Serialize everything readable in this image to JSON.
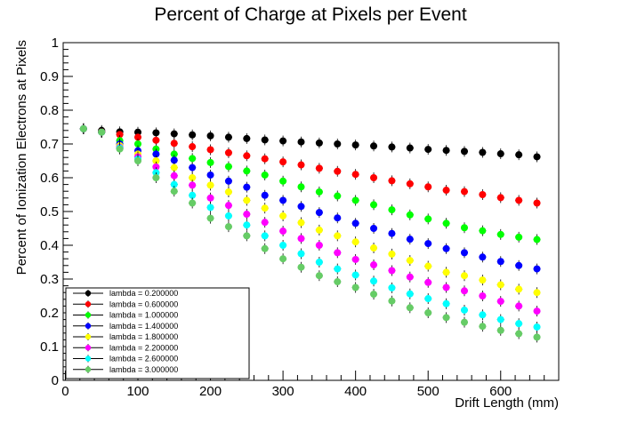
{
  "chart_data": {
    "type": "scatter",
    "title": "Percent of Charge at Pixels per Event",
    "xlabel": "Drift Length (mm)",
    "ylabel": "Percent of Ionization Electrons at Pixels",
    "xlim": [
      -3,
      680
    ],
    "ylim": [
      0,
      1
    ],
    "x_ticks": [
      0,
      100,
      200,
      300,
      400,
      500,
      600
    ],
    "y_ticks": [
      0,
      0.1,
      0.2,
      0.3,
      0.4,
      0.5,
      0.6,
      0.7,
      0.8,
      0.9,
      1
    ],
    "x_tick_labels": [
      "0",
      "100",
      "200",
      "300",
      "400",
      "500",
      "600"
    ],
    "y_tick_labels": [
      "0",
      "0.1",
      "0.2",
      "0.3",
      "0.4",
      "0.5",
      "0.6",
      "0.7",
      "0.8",
      "0.9",
      "1"
    ],
    "grid": false,
    "legend_position": "bottom-left",
    "x": [
      25,
      50,
      75,
      100,
      125,
      150,
      175,
      200,
      225,
      250,
      275,
      300,
      325,
      350,
      375,
      400,
      425,
      450,
      475,
      500,
      525,
      550,
      575,
      600,
      625,
      650
    ],
    "series": [
      {
        "name": "lambda = 0.200000",
        "color": "#000000",
        "values": [
          0.745,
          0.74,
          0.736,
          0.735,
          0.733,
          0.73,
          0.727,
          0.724,
          0.72,
          0.716,
          0.712,
          0.709,
          0.706,
          0.703,
          0.7,
          0.697,
          0.694,
          0.691,
          0.688,
          0.684,
          0.681,
          0.678,
          0.675,
          0.671,
          0.668,
          0.662
        ]
      },
      {
        "name": "lambda = 0.600000",
        "color": "#ff0000",
        "values": [
          0.745,
          0.736,
          0.728,
          0.72,
          0.711,
          0.702,
          0.692,
          0.683,
          0.674,
          0.665,
          0.656,
          0.647,
          0.638,
          0.628,
          0.619,
          0.61,
          0.6,
          0.591,
          0.582,
          0.573,
          0.563,
          0.559,
          0.55,
          0.541,
          0.533,
          0.525
        ]
      },
      {
        "name": "lambda = 1.000000",
        "color": "#00ff00",
        "values": [
          0.745,
          0.735,
          0.71,
          0.7,
          0.685,
          0.67,
          0.657,
          0.645,
          0.633,
          0.62,
          0.608,
          0.59,
          0.573,
          0.558,
          0.546,
          0.533,
          0.52,
          0.505,
          0.49,
          0.478,
          0.465,
          0.452,
          0.443,
          0.432,
          0.424,
          0.417
        ]
      },
      {
        "name": "lambda = 1.400000",
        "color": "#0000ff",
        "values": [
          0.745,
          0.735,
          0.7,
          0.68,
          0.67,
          0.652,
          0.63,
          0.608,
          0.59,
          0.572,
          0.548,
          0.533,
          0.515,
          0.497,
          0.481,
          0.465,
          0.45,
          0.435,
          0.418,
          0.405,
          0.39,
          0.378,
          0.365,
          0.352,
          0.34,
          0.33
        ]
      },
      {
        "name": "lambda = 1.800000",
        "color": "#ffff00",
        "values": [
          0.745,
          0.735,
          0.695,
          0.67,
          0.65,
          0.63,
          0.6,
          0.578,
          0.558,
          0.533,
          0.51,
          0.487,
          0.467,
          0.445,
          0.428,
          0.41,
          0.392,
          0.374,
          0.355,
          0.338,
          0.32,
          0.31,
          0.297,
          0.283,
          0.27,
          0.26
        ]
      },
      {
        "name": "lambda = 2.200000",
        "color": "#ff00ff",
        "values": [
          0.745,
          0.735,
          0.69,
          0.662,
          0.632,
          0.606,
          0.578,
          0.54,
          0.518,
          0.492,
          0.468,
          0.442,
          0.42,
          0.4,
          0.378,
          0.358,
          0.342,
          0.325,
          0.306,
          0.29,
          0.275,
          0.265,
          0.25,
          0.234,
          0.22,
          0.205
        ]
      },
      {
        "name": "lambda = 2.600000",
        "color": "#00ffff",
        "values": [
          0.745,
          0.735,
          0.688,
          0.655,
          0.615,
          0.58,
          0.548,
          0.512,
          0.487,
          0.46,
          0.428,
          0.4,
          0.375,
          0.35,
          0.33,
          0.312,
          0.294,
          0.274,
          0.256,
          0.242,
          0.227,
          0.208,
          0.194,
          0.18,
          0.168,
          0.158
        ]
      },
      {
        "name": "lambda = 3.000000",
        "color": "#66cc66",
        "values": [
          0.745,
          0.735,
          0.685,
          0.65,
          0.6,
          0.56,
          0.525,
          0.48,
          0.455,
          0.428,
          0.39,
          0.36,
          0.335,
          0.31,
          0.292,
          0.275,
          0.255,
          0.235,
          0.215,
          0.2,
          0.186,
          0.172,
          0.16,
          0.148,
          0.138,
          0.128
        ]
      }
    ]
  }
}
